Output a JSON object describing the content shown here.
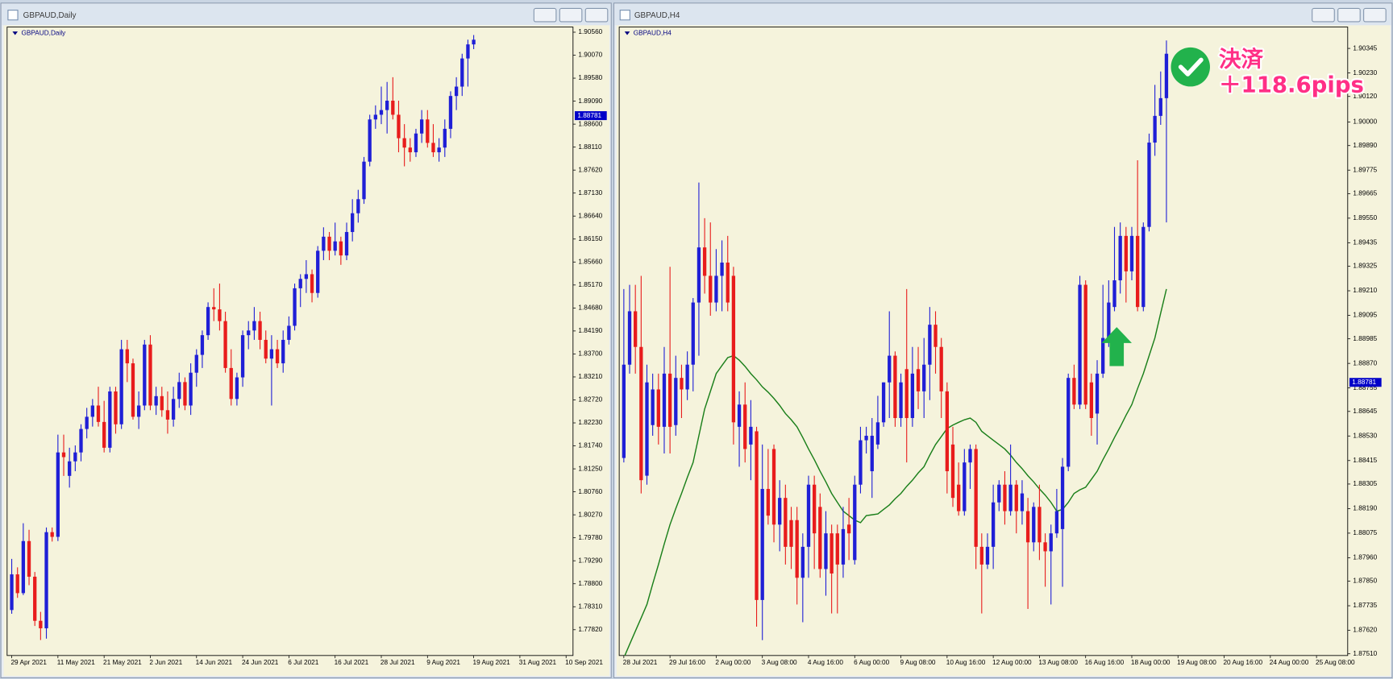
{
  "chart_data": [
    {
      "type": "candlestick",
      "window_title": "GBPAUD,Daily",
      "title": "GBPAUD,Daily",
      "up_color": "#1f1fd6",
      "down_color": "#e81c1c",
      "bid": 1.88781,
      "xlim": [
        -0.8,
        97.2
      ],
      "xticks": [
        {
          "value": 0,
          "label": "29 Apr 2021"
        },
        {
          "value": 8,
          "label": "11 May 2021"
        },
        {
          "value": 16,
          "label": "21 May 2021"
        },
        {
          "value": 24,
          "label": "2 Jun 2021"
        },
        {
          "value": 32,
          "label": "14 Jun 2021"
        },
        {
          "value": 40,
          "label": "24 Jun 2021"
        },
        {
          "value": 48,
          "label": "6 Jul 2021"
        },
        {
          "value": 56,
          "label": "16 Jul 2021"
        },
        {
          "value": 64,
          "label": "28 Jul 2021"
        },
        {
          "value": 72,
          "label": "9 Aug 2021"
        },
        {
          "value": 80,
          "label": "19 Aug 2021"
        },
        {
          "value": 88,
          "label": "31 Aug 2021"
        },
        {
          "value": 96,
          "label": "10 Sep 2021"
        }
      ],
      "ylim": [
        1.7727,
        1.9067
      ],
      "yticks": [
        {
          "value": 1.9056,
          "label": "1.90560"
        },
        {
          "value": 1.9007,
          "label": "1.90070"
        },
        {
          "value": 1.8958,
          "label": "1.89580"
        },
        {
          "value": 1.8909,
          "label": "1.89090"
        },
        {
          "value": 1.886,
          "label": "1.88600"
        },
        {
          "value": 1.8811,
          "label": "1.88110"
        },
        {
          "value": 1.8762,
          "label": "1.87620"
        },
        {
          "value": 1.8713,
          "label": "1.87130"
        },
        {
          "value": 1.8664,
          "label": "1.86640"
        },
        {
          "value": 1.8615,
          "label": "1.86150"
        },
        {
          "value": 1.8566,
          "label": "1.85660"
        },
        {
          "value": 1.8517,
          "label": "1.85170"
        },
        {
          "value": 1.8468,
          "label": "1.84680"
        },
        {
          "value": 1.8419,
          "label": "1.84190"
        },
        {
          "value": 1.837,
          "label": "1.83700"
        },
        {
          "value": 1.8321,
          "label": "1.83210"
        },
        {
          "value": 1.8272,
          "label": "1.82720"
        },
        {
          "value": 1.8223,
          "label": "1.82230"
        },
        {
          "value": 1.8174,
          "label": "1.81740"
        },
        {
          "value": 1.8125,
          "label": "1.81250"
        },
        {
          "value": 1.8076,
          "label": "1.80760"
        },
        {
          "value": 1.8027,
          "label": "1.80270"
        },
        {
          "value": 1.7978,
          "label": "1.79780"
        },
        {
          "value": 1.7929,
          "label": "1.79290"
        },
        {
          "value": 1.788,
          "label": "1.78800"
        },
        {
          "value": 1.7831,
          "label": "1.78310"
        },
        {
          "value": 1.7782,
          "label": "1.77820"
        }
      ],
      "open": [
        1.7824,
        1.79,
        1.786,
        1.7971,
        1.7895,
        1.7801,
        1.7785,
        1.799,
        1.798,
        1.816,
        1.811,
        1.8141,
        1.816,
        1.821,
        1.8236,
        1.826,
        1.8225,
        1.817,
        1.829,
        1.822,
        1.838,
        1.835,
        1.8236,
        1.826,
        1.839,
        1.826,
        1.828,
        1.825,
        1.823,
        1.8274,
        1.831,
        1.826,
        1.833,
        1.8368,
        1.841,
        1.847,
        1.8465,
        1.844,
        1.834,
        1.8274,
        1.832,
        1.841,
        1.842,
        1.844,
        1.84,
        1.836,
        1.838,
        1.835,
        1.84,
        1.843,
        1.851,
        1.853,
        1.854,
        1.85,
        1.859,
        1.862,
        1.859,
        1.861,
        1.858,
        1.863,
        1.867,
        1.87,
        1.878,
        1.887,
        1.888,
        1.889,
        1.891,
        1.888,
        1.883,
        1.881,
        1.88,
        1.884,
        1.887,
        1.882,
        1.88,
        1.881,
        1.885,
        1.892,
        1.894,
        1.9,
        1.903
      ],
      "high": [
        1.7933,
        1.7915,
        1.8009,
        1.7995,
        1.7905,
        1.782,
        1.8,
        1.8,
        1.8198,
        1.8198,
        1.817,
        1.8175,
        1.822,
        1.8255,
        1.8274,
        1.83,
        1.827,
        1.83,
        1.83,
        1.84,
        1.84,
        1.836,
        1.829,
        1.84,
        1.841,
        1.83,
        1.83,
        1.829,
        1.83,
        1.833,
        1.832,
        1.835,
        1.838,
        1.842,
        1.848,
        1.851,
        1.852,
        1.846,
        1.838,
        1.833,
        1.842,
        1.844,
        1.847,
        1.846,
        1.842,
        1.841,
        1.84,
        1.842,
        1.845,
        1.852,
        1.854,
        1.857,
        1.855,
        1.86,
        1.864,
        1.863,
        1.865,
        1.862,
        1.865,
        1.87,
        1.872,
        1.879,
        1.888,
        1.89,
        1.894,
        1.895,
        1.896,
        1.891,
        1.886,
        1.883,
        1.885,
        1.889,
        1.889,
        1.886,
        1.883,
        1.887,
        1.893,
        1.896,
        1.901,
        1.904,
        1.905
      ],
      "low": [
        1.7816,
        1.785,
        1.7856,
        1.7877,
        1.779,
        1.776,
        1.7763,
        1.797,
        1.7971,
        1.811,
        1.8085,
        1.812,
        1.8141,
        1.819,
        1.8215,
        1.8215,
        1.816,
        1.816,
        1.82,
        1.821,
        1.831,
        1.823,
        1.821,
        1.825,
        1.825,
        1.824,
        1.8236,
        1.82,
        1.8215,
        1.8255,
        1.825,
        1.824,
        1.83,
        1.834,
        1.84,
        1.844,
        1.842,
        1.833,
        1.826,
        1.826,
        1.83,
        1.838,
        1.84,
        1.838,
        1.835,
        1.826,
        1.834,
        1.833,
        1.839,
        1.842,
        1.847,
        1.85,
        1.848,
        1.849,
        1.857,
        1.857,
        1.858,
        1.856,
        1.857,
        1.861,
        1.865,
        1.869,
        1.877,
        1.885,
        1.886,
        1.884,
        1.887,
        1.88,
        1.877,
        1.878,
        1.879,
        1.882,
        1.881,
        1.879,
        1.878,
        1.879,
        1.883,
        1.889,
        1.892,
        1.894,
        1.902
      ],
      "close": [
        1.79,
        1.786,
        1.7971,
        1.7895,
        1.7801,
        1.7785,
        1.799,
        1.798,
        1.816,
        1.815,
        1.8141,
        1.816,
        1.821,
        1.8236,
        1.826,
        1.8225,
        1.817,
        1.829,
        1.822,
        1.838,
        1.835,
        1.8236,
        1.826,
        1.839,
        1.826,
        1.828,
        1.825,
        1.823,
        1.8274,
        1.831,
        1.826,
        1.833,
        1.8368,
        1.841,
        1.847,
        1.8465,
        1.844,
        1.834,
        1.8274,
        1.832,
        1.841,
        1.842,
        1.844,
        1.84,
        1.836,
        1.838,
        1.835,
        1.84,
        1.843,
        1.851,
        1.853,
        1.854,
        1.85,
        1.859,
        1.862,
        1.859,
        1.861,
        1.858,
        1.863,
        1.867,
        1.87,
        1.878,
        1.887,
        1.888,
        1.889,
        1.891,
        1.888,
        1.883,
        1.881,
        1.88,
        1.884,
        1.887,
        1.882,
        1.88,
        1.881,
        1.885,
        1.892,
        1.894,
        1.9,
        1.903,
        1.904
      ]
    },
    {
      "type": "candlestick",
      "window_title": "GBPAUD,H4",
      "title": "GBPAUD,H4",
      "up_color": "#1f1fd6",
      "down_color": "#e81c1c",
      "bid": 1.88781,
      "xlim": [
        -0.8,
        125.4
      ],
      "xticks": [
        {
          "value": 0,
          "label": "28 Jul 2021"
        },
        {
          "value": 8,
          "label": "29 Jul 16:00"
        },
        {
          "value": 16,
          "label": "2 Aug 00:00"
        },
        {
          "value": 24,
          "label": "3 Aug 08:00"
        },
        {
          "value": 32,
          "label": "4 Aug 16:00"
        },
        {
          "value": 40,
          "label": "6 Aug 00:00"
        },
        {
          "value": 48,
          "label": "9 Aug 08:00"
        },
        {
          "value": 56,
          "label": "10 Aug 16:00"
        },
        {
          "value": 64,
          "label": "12 Aug 00:00"
        },
        {
          "value": 72,
          "label": "13 Aug 08:00"
        },
        {
          "value": 80,
          "label": "16 Aug 16:00"
        },
        {
          "value": 88,
          "label": "18 Aug 00:00"
        },
        {
          "value": 96,
          "label": "19 Aug 08:00"
        },
        {
          "value": 104,
          "label": "20 Aug 16:00"
        },
        {
          "value": 112,
          "label": "24 Aug 00:00"
        },
        {
          "value": 120,
          "label": "25 Aug 08:00"
        }
      ],
      "ylim": [
        1.87502,
        1.90445
      ],
      "yticks": [
        1.90345,
        {
          "value": 1.9023,
          "label": "1.90230"
        },
        {
          "value": 1.9012,
          "label": "1.90120"
        },
        {
          "value": 1.9,
          "label": "1.90000"
        },
        {
          "value": 1.8989,
          "label": "1.89890"
        },
        1.89775,
        1.89665,
        {
          "value": 1.8955,
          "label": "1.89550"
        },
        1.89435,
        1.89325,
        {
          "value": 1.8921,
          "label": "1.89210"
        },
        1.89095,
        1.88985,
        {
          "value": 1.8887,
          "label": "1.88870"
        },
        1.88755,
        1.88645,
        {
          "value": 1.8853,
          "label": "1.88530"
        },
        1.88415,
        1.88305,
        {
          "value": 1.8819,
          "label": "1.88190"
        },
        1.88075,
        {
          "value": 1.8796,
          "label": "1.87960"
        },
        {
          "value": 1.8785,
          "label": "1.87850"
        },
        1.87735,
        {
          "value": 1.8762,
          "label": "1.87620"
        },
        {
          "value": 1.8751,
          "label": "1.87510"
        }
      ],
      "open": [
        1.88427,
        1.88864,
        1.89114,
        1.88947,
        1.88344,
        1.88581,
        1.88748,
        1.88573,
        1.88822,
        1.88581,
        1.88802,
        1.88748,
        1.88864,
        1.89155,
        1.89413,
        1.8928,
        1.89155,
        1.8928,
        1.89342,
        1.8928,
        1.88573,
        1.88677,
        1.8849,
        1.88552,
        1.87762,
        1.88282,
        1.88469,
        1.88115,
        1.8824,
        1.88136,
        1.88136,
        1.87866,
        1.88011,
        1.88302,
        1.88198,
        1.87907,
        1.88074,
        1.88074,
        1.87928,
        1.88115,
        1.87949,
        1.88302,
        1.8851,
        1.88365,
        1.8849,
        1.88594,
        1.88781,
        1.88906,
        1.88614,
        1.88843,
        1.88614,
        1.88843,
        1.88739,
        1.88864,
        1.89051,
        1.88947,
        1.88739,
        1.8849,
        1.88302,
        1.88178,
        1.88406,
        1.88469,
        1.88011,
        1.87928,
        1.88011,
        1.88219,
        1.88302,
        1.88178,
        1.88302,
        1.88178,
        1.88178,
        1.88032,
        1.88198,
        1.88032,
        1.8799,
        1.88074,
        1.88094,
        1.88386,
        1.88802,
        1.88677,
        1.89238,
        1.88781,
        1.88635,
        1.88822,
        1.88989,
        1.89134,
        1.89259,
        1.89467,
        1.89301,
        1.89467,
        1.89134,
        1.89509,
        1.89904,
        1.90029,
        1.90112
      ],
      "high": [
        1.89218,
        1.89238,
        1.89238,
        1.8928,
        1.88864,
        1.88822,
        1.88822,
        1.88947,
        1.89322,
        1.88906,
        1.88864,
        1.88926,
        1.89176,
        1.89717,
        1.8955,
        1.8953,
        1.89405,
        1.89446,
        1.89467,
        1.89322,
        1.88739,
        1.88781,
        1.88698,
        1.88573,
        1.8849,
        1.88469,
        1.8849,
        1.88323,
        1.88302,
        1.88198,
        1.88198,
        1.88074,
        1.88344,
        1.88344,
        1.88261,
        1.88178,
        1.88115,
        1.88115,
        1.88198,
        1.8824,
        1.88344,
        1.88573,
        1.88573,
        1.88614,
        1.88718,
        1.88781,
        1.89114,
        1.88926,
        1.88822,
        1.89218,
        1.88947,
        1.88947,
        1.88989,
        1.89134,
        1.89114,
        1.88989,
        1.88781,
        1.88573,
        1.88406,
        1.88469,
        1.8849,
        1.8849,
        1.88074,
        1.88074,
        1.88302,
        1.88323,
        1.88365,
        1.8849,
        1.88323,
        1.88323,
        1.8824,
        1.88219,
        1.88302,
        1.88074,
        1.88115,
        1.88282,
        1.88427,
        1.88822,
        1.88864,
        1.8928,
        1.89259,
        1.88822,
        1.88885,
        1.89238,
        1.89259,
        1.89509,
        1.8953,
        1.89509,
        1.89509,
        1.89821,
        1.8953,
        1.89946,
        1.90174,
        1.90237,
        1.90382
      ],
      "low": [
        1.88406,
        1.88822,
        1.88822,
        1.88261,
        1.88302,
        1.88531,
        1.8849,
        1.88448,
        1.88448,
        1.88531,
        1.88614,
        1.88698,
        1.88739,
        1.88906,
        1.89197,
        1.89093,
        1.89114,
        1.89114,
        1.89114,
        1.8849,
        1.88386,
        1.88406,
        1.88323,
        1.87637,
        1.87574,
        1.88115,
        1.88032,
        1.8799,
        1.87928,
        1.87907,
        1.87741,
        1.87658,
        1.87866,
        1.87907,
        1.87866,
        1.87782,
        1.87699,
        1.87699,
        1.87866,
        1.87949,
        1.87928,
        1.88261,
        1.88448,
        1.8824,
        1.88469,
        1.88573,
        1.88614,
        1.88573,
        1.88573,
        1.88406,
        1.88573,
        1.88656,
        1.88614,
        1.88698,
        1.88822,
        1.88614,
        1.88261,
        1.88198,
        1.88157,
        1.88157,
        1.88282,
        1.87907,
        1.87699,
        1.87907,
        1.87907,
        1.88178,
        1.88115,
        1.88157,
        1.88074,
        1.88115,
        1.8772,
        1.8799,
        1.87949,
        1.87824,
        1.87741,
        1.88053,
        1.87824,
        1.88365,
        1.88656,
        1.88656,
        1.88656,
        1.88531,
        1.8849,
        1.88802,
        1.88947,
        1.89114,
        1.89197,
        1.89155,
        1.89259,
        1.89114,
        1.89114,
        1.89488,
        1.89842,
        1.89987,
        1.8953
      ],
      "close": [
        1.88864,
        1.89114,
        1.88947,
        1.88323,
        1.88781,
        1.88748,
        1.88573,
        1.88822,
        1.88573,
        1.88802,
        1.88748,
        1.88864,
        1.89155,
        1.89413,
        1.8928,
        1.89155,
        1.8928,
        1.89342,
        1.89155,
        1.88594,
        1.88677,
        1.88469,
        1.88573,
        1.87762,
        1.88282,
        1.88157,
        1.88115,
        1.8824,
        1.88011,
        1.88011,
        1.87866,
        1.88011,
        1.88302,
        1.88074,
        1.87907,
        1.88074,
        1.87886,
        1.87928,
        1.88094,
        1.88074,
        1.88302,
        1.8851,
        1.88531,
        1.88531,
        1.88594,
        1.88781,
        1.88906,
        1.88614,
        1.88781,
        1.88614,
        1.88822,
        1.88739,
        1.88864,
        1.89051,
        1.88947,
        1.88739,
        1.88365,
        1.8824,
        1.88178,
        1.88406,
        1.88469,
        1.88011,
        1.87928,
        1.88011,
        1.88219,
        1.88302,
        1.88178,
        1.88302,
        1.88178,
        1.88261,
        1.88032,
        1.88198,
        1.88032,
        1.8799,
        1.88074,
        1.88178,
        1.88386,
        1.88802,
        1.88677,
        1.89238,
        1.88677,
        1.88614,
        1.88822,
        1.88989,
        1.89155,
        1.89259,
        1.89467,
        1.89301,
        1.89467,
        1.89134,
        1.89509,
        1.89904,
        1.90029,
        1.90112,
        1.9032
      ],
      "ma": {
        "color": "#1a7f1a",
        "values": [
          1.87491,
          1.87554,
          1.87616,
          1.87678,
          1.87741,
          1.87837,
          1.87928,
          1.88024,
          1.88115,
          1.8819,
          1.88261,
          1.88336,
          1.88406,
          1.88531,
          1.88656,
          1.88739,
          1.88822,
          1.8886,
          1.88897,
          1.88906,
          1.88885,
          1.88856,
          1.88822,
          1.88793,
          1.8876,
          1.88735,
          1.88706,
          1.88673,
          1.88635,
          1.88606,
          1.88573,
          1.88523,
          1.88469,
          1.88419,
          1.88365,
          1.88315,
          1.88261,
          1.88219,
          1.88178,
          1.88157,
          1.88136,
          1.88124,
          1.88157,
          1.88161,
          1.88165,
          1.88186,
          1.88207,
          1.88236,
          1.88261,
          1.88294,
          1.88323,
          1.88357,
          1.88386,
          1.8844,
          1.8849,
          1.88527,
          1.88565,
          1.88581,
          1.88594,
          1.88606,
          1.88614,
          1.88594,
          1.88552,
          1.88531,
          1.8851,
          1.8849,
          1.88469,
          1.8844,
          1.88406,
          1.88377,
          1.88344,
          1.88315,
          1.88282,
          1.88253,
          1.88219,
          1.88178,
          1.88186,
          1.88219,
          1.88261,
          1.88278,
          1.8829,
          1.88327,
          1.88365,
          1.88419,
          1.88469,
          1.88523,
          1.88573,
          1.88627,
          1.88677,
          1.88752,
          1.88822,
          1.88906,
          1.88989,
          1.89105,
          1.89218
        ]
      },
      "annotation": [
        "決済",
        "＋118.6pips"
      ]
    }
  ]
}
